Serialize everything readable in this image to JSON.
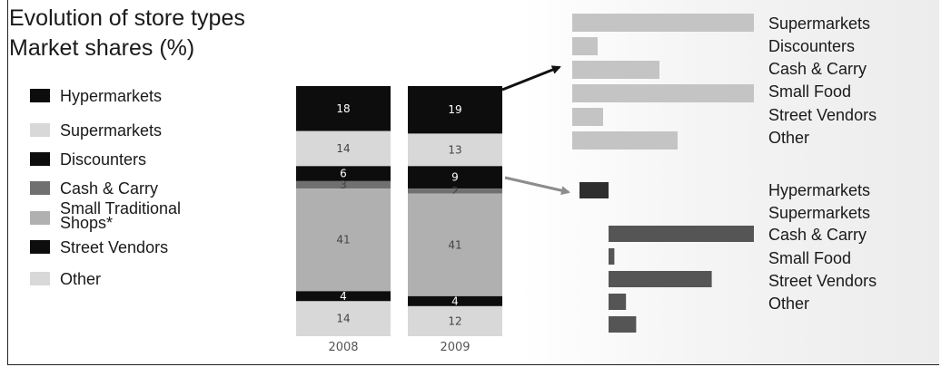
{
  "title_line1": "Evolution of store types",
  "title_line2": "Market shares (%)",
  "colors": {
    "Hypermarkets": "#0d0d0d",
    "Supermarkets": "#d8d8d8",
    "Discounters": "#0d0d0d",
    "Cash & Carry": "#707070",
    "Small Traditional Shops*": "#b0b0b0",
    "Street Vendors": "#0d0d0d",
    "Other": "#d8d8d8",
    "top_panel_bars": "#c4c4c4",
    "bottom_panel_bars": "#555555",
    "bottom_panel_first": "#2e2e2e",
    "arrow_black": "#111111",
    "arrow_gray": "#8c8c8c"
  },
  "chart_data": [
    {
      "type": "bar",
      "stacked": true,
      "categories": [
        "2008",
        "2009"
      ],
      "series": [
        {
          "name": "Hypermarkets",
          "values": [
            18,
            19
          ]
        },
        {
          "name": "Supermarkets",
          "values": [
            14,
            13
          ]
        },
        {
          "name": "Discounters",
          "values": [
            6,
            9
          ]
        },
        {
          "name": "Cash & Carry",
          "values": [
            3,
            2
          ]
        },
        {
          "name": "Small Traditional Shops*",
          "values": [
            41,
            41
          ]
        },
        {
          "name": "Street Vendors",
          "values": [
            4,
            4
          ]
        },
        {
          "name": "Other",
          "values": [
            14,
            12
          ]
        }
      ],
      "legend": {
        "position": "left",
        "labels": [
          "Hypermarkets",
          "Supermarkets",
          "Discounters",
          "Cash & Carry",
          "Small Traditional\nShops*",
          "Street Vendors",
          "Other"
        ]
      }
    },
    {
      "type": "bar",
      "orientation": "horizontal",
      "unlabeled_values": true,
      "categories": [
        "Supermarkets",
        "Discounters",
        "Cash & Carry",
        "Small Food",
        "Street Vendors",
        "Other"
      ],
      "values": [
        100,
        14,
        48,
        100,
        17,
        58
      ]
    },
    {
      "type": "bar",
      "orientation": "horizontal",
      "unlabeled_values": true,
      "categories": [
        "Hypermarkets",
        "Supermarkets",
        "Cash & Carry",
        "Small Food",
        "Street Vendors",
        "Other"
      ],
      "values": [
        20,
        100,
        4,
        71,
        12,
        19
      ]
    }
  ]
}
